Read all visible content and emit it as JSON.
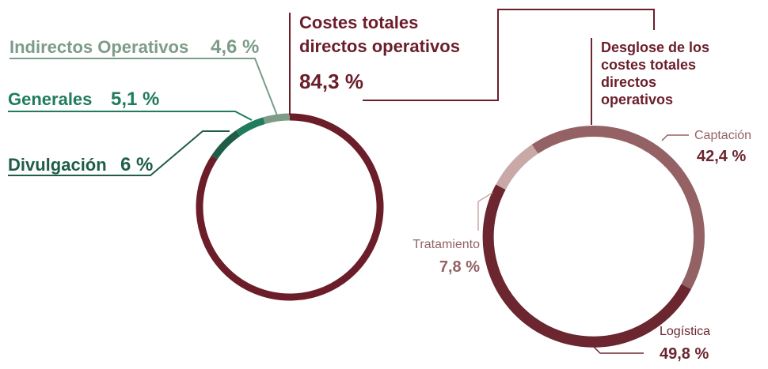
{
  "chart_data": [
    {
      "type": "pie",
      "style": "donut-ring",
      "slices": [
        {
          "label": "Costes totales directos operativos",
          "value": 84.3,
          "value_text": "84,3 %",
          "color": "#6b1e2a"
        },
        {
          "label": "Divulgación",
          "value": 6.0,
          "value_text": "6 %",
          "color": "#1f5d49"
        },
        {
          "label": "Generales",
          "value": 5.1,
          "value_text": "5,1 %",
          "color": "#1f7c5c"
        },
        {
          "label": "Indirectos Operativos",
          "value": 4.6,
          "value_text": "4,6 %",
          "color": "#7d9c88"
        }
      ]
    },
    {
      "type": "pie",
      "style": "donut-ring",
      "title": "Desglose de los costes totales directos operativos",
      "title_lines": [
        "Desglose de los",
        "costes totales",
        "directos",
        "operativos"
      ],
      "slices": [
        {
          "label": "Captación",
          "value": 42.4,
          "value_text": "42,4 %",
          "color": "#946264"
        },
        {
          "label": "Logística",
          "value": 49.8,
          "value_text": "49,8 %",
          "color": "#6b2630"
        },
        {
          "label": "Tratamiento",
          "value": 7.8,
          "value_text": "7,8 %",
          "color": "#c8a9a7"
        }
      ]
    }
  ],
  "labels": {
    "main_title_lines": [
      "Costes totales",
      "directos operativos"
    ]
  }
}
